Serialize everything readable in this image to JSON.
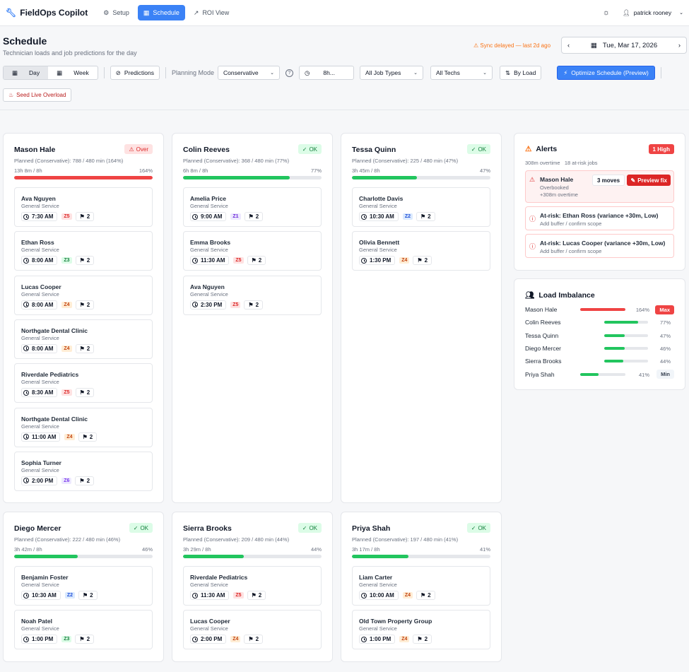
{
  "app": {
    "name": "FieldOps Copilot",
    "nav": [
      {
        "label": "Setup",
        "icon": "gear-icon"
      },
      {
        "label": "Schedule",
        "icon": "calendar-icon",
        "active": true
      },
      {
        "label": "ROI View",
        "icon": "trend-icon"
      }
    ],
    "user": "patrick rooney"
  },
  "page": {
    "title": "Schedule",
    "subtitle": "Technician loads and job predictions for the day",
    "sync_status": "Sync delayed — last 2d ago",
    "date": "Tue, Mar 17, 2026"
  },
  "toolbar": {
    "view_day": "Day",
    "view_week": "Week",
    "predictions": "Predictions",
    "planning_mode_label": "Planning Mode",
    "planning_mode": "Conservative",
    "hours": "8h...",
    "job_types": "All Job Types",
    "techs": "All Techs",
    "sort": "By Load",
    "optimize": "Optimize Schedule (Preview)",
    "seed": "Seed Live Overload"
  },
  "colors": {
    "accent": "#3b82f6",
    "ok": "#22c55e",
    "over": "#ef4444",
    "zone": {
      "Z1": {
        "bg": "#ede9fe",
        "fg": "#6d28d9"
      },
      "Z2": {
        "bg": "#dbeafe",
        "fg": "#1d4ed8"
      },
      "Z3": {
        "bg": "#dcfce7",
        "fg": "#15803d"
      },
      "Z4": {
        "bg": "#ffedd5",
        "fg": "#c2410c"
      },
      "Z5": {
        "bg": "#fee2e2",
        "fg": "#dc2626"
      },
      "Z6": {
        "bg": "#ede9fe",
        "fg": "#7c3aed"
      }
    }
  },
  "technicians": [
    {
      "name": "Mason Hale",
      "status": "Over",
      "status_type": "over",
      "planned": "Planned (Conservative): 788 / 480 min (164%)",
      "hours": "13h 8m / 8h",
      "pct": "164%",
      "fill": 1.0,
      "jobs": [
        {
          "name": "Ava Nguyen",
          "type": "General Service",
          "time": "7:30 AM",
          "zone": "Z5",
          "flags": "2"
        },
        {
          "name": "Ethan Ross",
          "type": "General Service",
          "time": "8:00 AM",
          "zone": "Z3",
          "flags": "2"
        },
        {
          "name": "Lucas Cooper",
          "type": "General Service",
          "time": "8:00 AM",
          "zone": "Z4",
          "flags": "2"
        },
        {
          "name": "Northgate Dental Clinic",
          "type": "General Service",
          "time": "8:00 AM",
          "zone": "Z4",
          "flags": "2"
        },
        {
          "name": "Riverdale Pediatrics",
          "type": "General Service",
          "time": "8:30 AM",
          "zone": "Z5",
          "flags": "2"
        },
        {
          "name": "Northgate Dental Clinic",
          "type": "General Service",
          "time": "11:00 AM",
          "zone": "Z4",
          "flags": "2"
        },
        {
          "name": "Sophia Turner",
          "type": "General Service",
          "time": "2:00 PM",
          "zone": "Z6",
          "flags": "2"
        }
      ]
    },
    {
      "name": "Colin Reeves",
      "status": "OK",
      "status_type": "ok",
      "planned": "Planned (Conservative): 368 / 480 min (77%)",
      "hours": "6h 8m / 8h",
      "pct": "77%",
      "fill": 0.77,
      "jobs": [
        {
          "name": "Amelia Price",
          "type": "General Service",
          "time": "9:00 AM",
          "zone": "Z1",
          "flags": "2"
        },
        {
          "name": "Emma Brooks",
          "type": "General Service",
          "time": "11:30 AM",
          "zone": "Z5",
          "flags": "2"
        },
        {
          "name": "Ava Nguyen",
          "type": "General Service",
          "time": "2:30 PM",
          "zone": "Z5",
          "flags": "2"
        }
      ]
    },
    {
      "name": "Tessa Quinn",
      "status": "OK",
      "status_type": "ok",
      "planned": "Planned (Conservative): 225 / 480 min (47%)",
      "hours": "3h 45m / 8h",
      "pct": "47%",
      "fill": 0.47,
      "jobs": [
        {
          "name": "Charlotte Davis",
          "type": "General Service",
          "time": "10:30 AM",
          "zone": "Z2",
          "flags": "2"
        },
        {
          "name": "Olivia Bennett",
          "type": "General Service",
          "time": "1:30 PM",
          "zone": "Z4",
          "flags": "2"
        }
      ]
    },
    {
      "name": "Diego Mercer",
      "status": "OK",
      "status_type": "ok",
      "planned": "Planned (Conservative): 222 / 480 min (46%)",
      "hours": "3h 42m / 8h",
      "pct": "46%",
      "fill": 0.46,
      "jobs": [
        {
          "name": "Benjamin Foster",
          "type": "General Service",
          "time": "10:30 AM",
          "zone": "Z2",
          "flags": "2"
        },
        {
          "name": "Noah Patel",
          "type": "General Service",
          "time": "1:00 PM",
          "zone": "Z3",
          "flags": "2"
        }
      ]
    },
    {
      "name": "Sierra Brooks",
      "status": "OK",
      "status_type": "ok",
      "planned": "Planned (Conservative): 209 / 480 min (44%)",
      "hours": "3h 29m / 8h",
      "pct": "44%",
      "fill": 0.44,
      "jobs": [
        {
          "name": "Riverdale Pediatrics",
          "type": "General Service",
          "time": "11:30 AM",
          "zone": "Z5",
          "flags": "2"
        },
        {
          "name": "Lucas Cooper",
          "type": "General Service",
          "time": "2:00 PM",
          "zone": "Z4",
          "flags": "2"
        }
      ]
    },
    {
      "name": "Priya Shah",
      "status": "OK",
      "status_type": "ok",
      "planned": "Planned (Conservative): 197 / 480 min (41%)",
      "hours": "3h 17m / 8h",
      "pct": "41%",
      "fill": 0.41,
      "jobs": [
        {
          "name": "Liam Carter",
          "type": "General Service",
          "time": "10:00 AM",
          "zone": "Z4",
          "flags": "2"
        },
        {
          "name": "Old Town Property Group",
          "type": "General Service",
          "time": "1:00 PM",
          "zone": "Z4",
          "flags": "2"
        }
      ]
    }
  ],
  "alerts": {
    "title": "Alerts",
    "badge": "1 High",
    "overtime": "308m overtime",
    "at_risk": "18 at-risk jobs",
    "items": [
      {
        "title": "Mason Hale",
        "line1": "Overbooked",
        "line2": "+308m overtime",
        "moves": "3 moves",
        "action": "Preview fix"
      },
      {
        "title": "At-risk: Ethan Ross (variance +30m, Low)",
        "line1": "Add buffer / confirm scope"
      },
      {
        "title": "At-risk: Lucas Cooper (variance +30m, Low)",
        "line1": "Add buffer / confirm scope"
      }
    ]
  },
  "imbalance": {
    "title": "Load Imbalance",
    "rows": [
      {
        "name": "Mason Hale",
        "pct": "164%",
        "value": 1.64,
        "tag": "Max"
      },
      {
        "name": "Colin Reeves",
        "pct": "77%",
        "value": 0.77
      },
      {
        "name": "Tessa Quinn",
        "pct": "47%",
        "value": 0.47
      },
      {
        "name": "Diego Mercer",
        "pct": "46%",
        "value": 0.46
      },
      {
        "name": "Sierra Brooks",
        "pct": "44%",
        "value": 0.44
      },
      {
        "name": "Priya Shah",
        "pct": "41%",
        "value": 0.41,
        "tag": "Min"
      }
    ]
  }
}
